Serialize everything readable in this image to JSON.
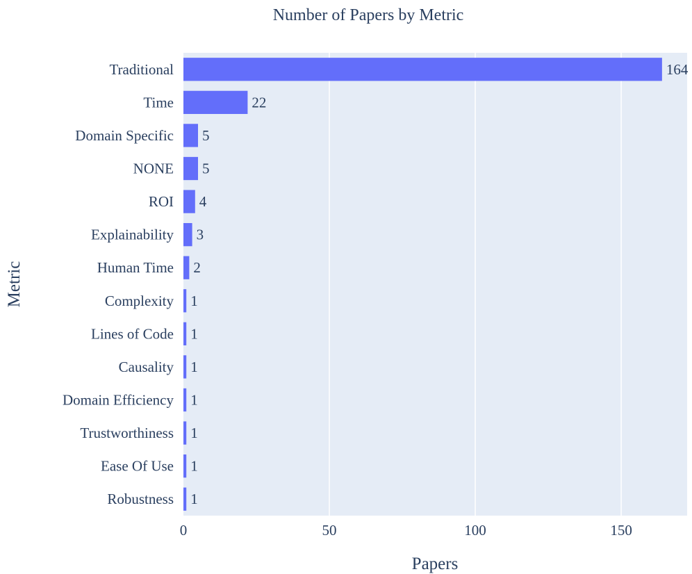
{
  "chart_data": {
    "type": "bar",
    "orientation": "horizontal",
    "title": "Number of Papers by Metric",
    "xlabel": "Papers",
    "ylabel": "Metric",
    "categories": [
      "Traditional",
      "Time",
      "Domain Specific",
      "NONE",
      "ROI",
      "Explainability",
      "Human Time",
      "Complexity",
      "Lines of Code",
      "Causality",
      "Domain Efficiency",
      "Trustworthiness",
      "Ease Of Use",
      "Robustness"
    ],
    "values": [
      164,
      22,
      5,
      5,
      4,
      3,
      2,
      1,
      1,
      1,
      1,
      1,
      1,
      1
    ],
    "xlim": [
      0,
      172.6
    ],
    "xticks": [
      0,
      50,
      100,
      150
    ],
    "grid": true,
    "legend": "none",
    "colors": {
      "bar": "#636efa",
      "plot_bg": "#e5ecf6",
      "grid": "#ffffff",
      "text": "#2a3f5f"
    }
  }
}
